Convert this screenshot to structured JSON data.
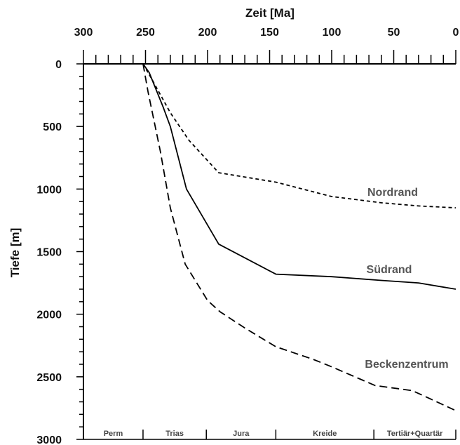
{
  "chart_data": {
    "type": "line",
    "xlabel": "Zeit [Ma]",
    "ylabel": "Tiefe [m]",
    "xlim": [
      300,
      0
    ],
    "ylim": [
      0,
      3000
    ],
    "x_axis_position": "top",
    "x_ticks": [
      300,
      250,
      200,
      150,
      100,
      50,
      0
    ],
    "x_minor_step": 10,
    "y_ticks": [
      0,
      500,
      1000,
      1500,
      2000,
      2500,
      3000
    ],
    "y_minor_step": 100,
    "y_inverted": true,
    "grid": false,
    "series": [
      {
        "name": "Nordrand",
        "line_style": "short-dash",
        "color": "#000000",
        "x": [
          252,
          245,
          230,
          215,
          191,
          145,
          100,
          60,
          30,
          0
        ],
        "y": [
          0,
          120,
          390,
          610,
          870,
          945,
          1060,
          1110,
          1135,
          1150
        ]
      },
      {
        "name": "Südrand",
        "line_style": "solid",
        "color": "#000000",
        "x": [
          252,
          247,
          236,
          230,
          217,
          191,
          145,
          100,
          60,
          30,
          0
        ],
        "y": [
          0,
          70,
          340,
          500,
          1000,
          1440,
          1680,
          1700,
          1730,
          1750,
          1800
        ]
      },
      {
        "name": "Beckenzentrum",
        "line_style": "long-dash",
        "color": "#000000",
        "x": [
          252,
          248,
          238,
          230,
          218,
          200,
          190,
          170,
          145,
          115,
          100,
          65,
          35,
          0
        ],
        "y": [
          0,
          220,
          700,
          1150,
          1600,
          1890,
          1980,
          2110,
          2260,
          2360,
          2420,
          2570,
          2610,
          2770
        ]
      }
    ],
    "periods": [
      {
        "name": "Perm",
        "start": 300,
        "end": 252
      },
      {
        "name": "Trias",
        "start": 252,
        "end": 201
      },
      {
        "name": "Jura",
        "start": 201,
        "end": 145
      },
      {
        "name": "Kreide",
        "start": 145,
        "end": 66
      },
      {
        "name": "Tertiär+Quartär",
        "start": 66,
        "end": 0
      }
    ]
  }
}
